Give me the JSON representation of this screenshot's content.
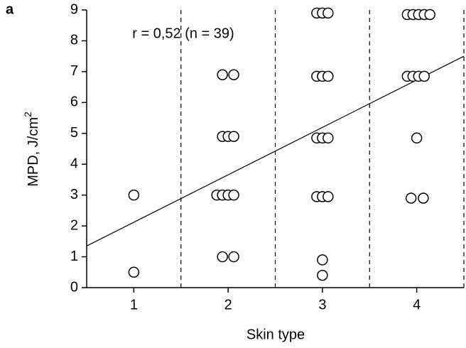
{
  "chart_data": {
    "type": "scatter",
    "panel_label": "a",
    "annotation": "r = 0,52 (n = 39)",
    "x_label": "Skin type",
    "y_label": "MPD, J/cm",
    "y_label_superscript": "2",
    "x": [
      1,
      1,
      1.94,
      2.06,
      1.94,
      2.0,
      2.06,
      1.88,
      1.94,
      2.0,
      2.06,
      1.94,
      2.06,
      2.94,
      3.0,
      3.06,
      2.94,
      3.0,
      3.06,
      2.94,
      3.0,
      3.06,
      2.94,
      3.0,
      3.06,
      3.0,
      3.0,
      3.9,
      3.96,
      4.02,
      4.08,
      4.14,
      3.9,
      3.96,
      4.02,
      4.08,
      4.0,
      3.94,
      4.07
    ],
    "values": [
      3,
      0.5,
      6.9,
      6.9,
      4.9,
      4.9,
      4.9,
      3,
      3,
      3,
      3,
      1,
      1,
      8.9,
      8.9,
      8.9,
      6.85,
      6.85,
      6.85,
      4.85,
      4.85,
      4.85,
      2.95,
      2.95,
      2.95,
      0.9,
      0.4,
      8.85,
      8.85,
      8.85,
      8.85,
      8.85,
      6.85,
      6.85,
      6.85,
      6.85,
      4.85,
      2.9,
      2.9
    ],
    "fit_line": {
      "x": [
        0.5,
        4.5
      ],
      "y": [
        1.35,
        7.5
      ]
    },
    "dividers": [
      1.5,
      2.5,
      3.5,
      4.5
    ],
    "xlim": [
      0.5,
      4.5
    ],
    "ylim": [
      0,
      9
    ],
    "xticks": [
      1,
      2,
      3,
      4
    ],
    "yticks": [
      0,
      1,
      2,
      3,
      4,
      5,
      6,
      7,
      8,
      9
    ]
  }
}
